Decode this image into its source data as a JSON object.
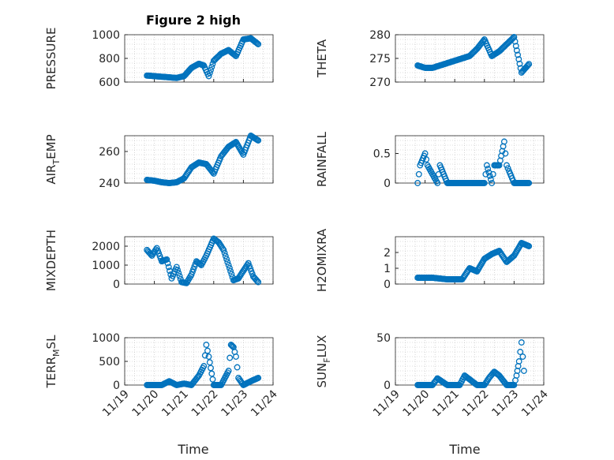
{
  "figure": {
    "title": "Figure 2 high",
    "xlabel": "Time",
    "colors": {
      "marker": "#0072BD",
      "axis": "#262626",
      "grid": "#bdbdbd",
      "axes_bg": "#ffffff"
    }
  },
  "chart_data": [
    {
      "type": "scatter",
      "ylabel": "PRESSURE",
      "title": "Figure 2 high",
      "xlim": [
        "11/19",
        "11/24"
      ],
      "ylim": [
        600,
        1000
      ],
      "yticks": [
        600,
        800,
        1000
      ],
      "x": [
        "11/19 18:00",
        "11/20 00:00",
        "11/20 06:00",
        "11/20 12:00",
        "11/20 18:00",
        "11/21 00:00",
        "11/21 06:00",
        "11/21 12:00",
        "11/21 16:00",
        "11/21 20:00",
        "11/22 00:00",
        "11/22 06:00",
        "11/22 12:00",
        "11/22 18:00",
        "11/23 00:00",
        "11/23 06:00",
        "11/23 12:00"
      ],
      "y": [
        655,
        650,
        645,
        640,
        635,
        650,
        720,
        755,
        740,
        650,
        780,
        840,
        870,
        820,
        960,
        970,
        920
      ],
      "xticks_labels": []
    },
    {
      "type": "scatter",
      "ylabel": "THETA",
      "xlim": [
        "11/19",
        "11/24"
      ],
      "ylim": [
        270,
        280
      ],
      "yticks": [
        270,
        275,
        280
      ],
      "x": [
        "11/19 18:00",
        "11/20 00:00",
        "11/20 06:00",
        "11/20 12:00",
        "11/20 18:00",
        "11/21 00:00",
        "11/21 06:00",
        "11/21 12:00",
        "11/21 18:00",
        "11/22 00:00",
        "11/22 06:00",
        "11/22 12:00",
        "11/22 18:00",
        "11/23 00:00",
        "11/23 06:00",
        "11/23 12:00"
      ],
      "y": [
        273.5,
        273,
        273,
        273.5,
        274,
        274.5,
        275,
        275.5,
        277,
        279,
        275.5,
        276.5,
        278,
        279.5,
        272,
        273.8
      ],
      "xticks_labels": []
    },
    {
      "type": "scatter",
      "ylabel": "AIR_TEMP",
      "ylabel_main": "AIR",
      "ylabel_sub": "T",
      "ylabel_tail": "EMP",
      "xlim": [
        "11/19",
        "11/24"
      ],
      "ylim": [
        240,
        270
      ],
      "yticks": [
        240,
        260
      ],
      "x": [
        "11/19 18:00",
        "11/20 00:00",
        "11/20 06:00",
        "11/20 12:00",
        "11/20 18:00",
        "11/21 00:00",
        "11/21 06:00",
        "11/21 12:00",
        "11/21 18:00",
        "11/22 00:00",
        "11/22 06:00",
        "11/22 12:00",
        "11/22 18:00",
        "11/23 00:00",
        "11/23 06:00",
        "11/23 12:00"
      ],
      "y": [
        242,
        241.5,
        240.5,
        240,
        240.5,
        243,
        250,
        253,
        252,
        246,
        257,
        263,
        266,
        258,
        270,
        267
      ],
      "xticks_labels": []
    },
    {
      "type": "scatter",
      "ylabel": "RAINFALL",
      "xlim": [
        "11/19",
        "11/24"
      ],
      "ylim": [
        0,
        0.8
      ],
      "yticks": [
        0,
        0.5
      ],
      "x": [
        "11/19 18:00",
        "11/19 20:00",
        "11/20 00:00",
        "11/20 02:00",
        "11/20 10:00",
        "11/20 12:00",
        "11/20 18:00",
        "11/21 00:00",
        "11/21 06:00",
        "11/21 12:00",
        "11/21 18:00",
        "11/22 00:00",
        "11/22 02:00",
        "11/22 06:00",
        "11/22 08:00",
        "11/22 12:00",
        "11/22 16:00",
        "11/22 18:00",
        "11/22 20:00",
        "11/23 00:00",
        "11/23 06:00",
        "11/23 12:00"
      ],
      "y": [
        0,
        0.3,
        0.5,
        0.3,
        0,
        0.3,
        0,
        0,
        0,
        0,
        0,
        0,
        0.3,
        0,
        0.3,
        0.3,
        0.7,
        0.3,
        0.2,
        0,
        0,
        0
      ],
      "xticks_labels": []
    },
    {
      "type": "scatter",
      "ylabel": "MIXDEPTH",
      "xlim": [
        "11/19",
        "11/24"
      ],
      "ylim": [
        0,
        2500
      ],
      "yticks": [
        0,
        1000,
        2000
      ],
      "x": [
        "11/19 18:00",
        "11/19 22:00",
        "11/20 02:00",
        "11/20 06:00",
        "11/20 10:00",
        "11/20 14:00",
        "11/20 18:00",
        "11/20 22:00",
        "11/21 02:00",
        "11/21 06:00",
        "11/21 10:00",
        "11/21 14:00",
        "11/21 18:00",
        "11/22 00:00",
        "11/22 04:00",
        "11/22 08:00",
        "11/22 12:00",
        "11/22 16:00",
        "11/22 20:00",
        "11/23 00:00",
        "11/23 04:00",
        "11/23 08:00",
        "11/23 12:00"
      ],
      "y": [
        1800,
        1500,
        1900,
        1200,
        1300,
        300,
        900,
        100,
        50,
        500,
        1200,
        1000,
        1500,
        2400,
        2200,
        1800,
        1000,
        200,
        300,
        700,
        1100,
        400,
        100
      ],
      "xticks_labels": []
    },
    {
      "type": "scatter",
      "ylabel": "H2OMIXRA",
      "xlim": [
        "11/19",
        "11/24"
      ],
      "ylim": [
        0,
        3
      ],
      "yticks": [
        0,
        1,
        2
      ],
      "x": [
        "11/19 18:00",
        "11/20 00:00",
        "11/20 06:00",
        "11/20 12:00",
        "11/20 18:00",
        "11/21 00:00",
        "11/21 06:00",
        "11/21 12:00",
        "11/21 18:00",
        "11/22 00:00",
        "11/22 06:00",
        "11/22 12:00",
        "11/22 18:00",
        "11/23 00:00",
        "11/23 06:00",
        "11/23 12:00"
      ],
      "y": [
        0.4,
        0.4,
        0.4,
        0.35,
        0.3,
        0.3,
        0.3,
        1.0,
        0.8,
        1.6,
        1.9,
        2.1,
        1.4,
        1.8,
        2.6,
        2.4
      ],
      "xticks_labels": []
    },
    {
      "type": "scatter",
      "ylabel": "TERR_MSL",
      "ylabel_main": "TERR",
      "ylabel_sub": "M",
      "ylabel_tail": "SL",
      "xlim": [
        "11/19",
        "11/24"
      ],
      "ylim": [
        0,
        1000
      ],
      "yticks": [
        0,
        500,
        1000
      ],
      "x": [
        "11/19 18:00",
        "11/20 00:00",
        "11/20 06:00",
        "11/20 12:00",
        "11/20 18:00",
        "11/21 00:00",
        "11/21 06:00",
        "11/21 12:00",
        "11/21 16:00",
        "11/21 18:00",
        "11/21 20:00",
        "11/22 00:00",
        "11/22 06:00",
        "11/22 12:00",
        "11/22 14:00",
        "11/22 16:00",
        "11/22 18:00",
        "11/22 20:00",
        "11/23 00:00",
        "11/23 06:00",
        "11/23 12:00"
      ],
      "y": [
        0,
        0,
        0,
        80,
        0,
        30,
        0,
        200,
        400,
        850,
        600,
        0,
        0,
        300,
        850,
        800,
        600,
        150,
        0,
        80,
        150
      ],
      "xticks_labels": [
        "11/19",
        "11/20",
        "11/21",
        "11/22",
        "11/23",
        "11/24"
      ]
    },
    {
      "type": "scatter",
      "ylabel": "SUN_FLUX",
      "ylabel_main": "SUN",
      "ylabel_sub": "F",
      "ylabel_tail": "LUX",
      "xlim": [
        "11/19",
        "11/24"
      ],
      "ylim": [
        0,
        50
      ],
      "yticks": [
        0,
        50
      ],
      "x": [
        "11/19 18:00",
        "11/20 00:00",
        "11/20 06:00",
        "11/20 10:00",
        "11/20 18:00",
        "11/21 00:00",
        "11/21 04:00",
        "11/21 08:00",
        "11/21 18:00",
        "11/22 00:00",
        "11/22 04:00",
        "11/22 08:00",
        "11/22 12:00",
        "11/22 18:00",
        "11/23 00:00",
        "11/23 02:00",
        "11/23 04:00",
        "11/23 06:00",
        "11/23 08:00"
      ],
      "y": [
        0,
        0,
        0,
        7,
        0,
        0,
        0,
        10,
        0,
        0,
        8,
        14,
        10,
        0,
        0,
        10,
        25,
        45,
        15
      ],
      "xticks_labels": [
        "11/19",
        "11/20",
        "11/21",
        "11/22",
        "11/23",
        "11/24"
      ]
    }
  ]
}
